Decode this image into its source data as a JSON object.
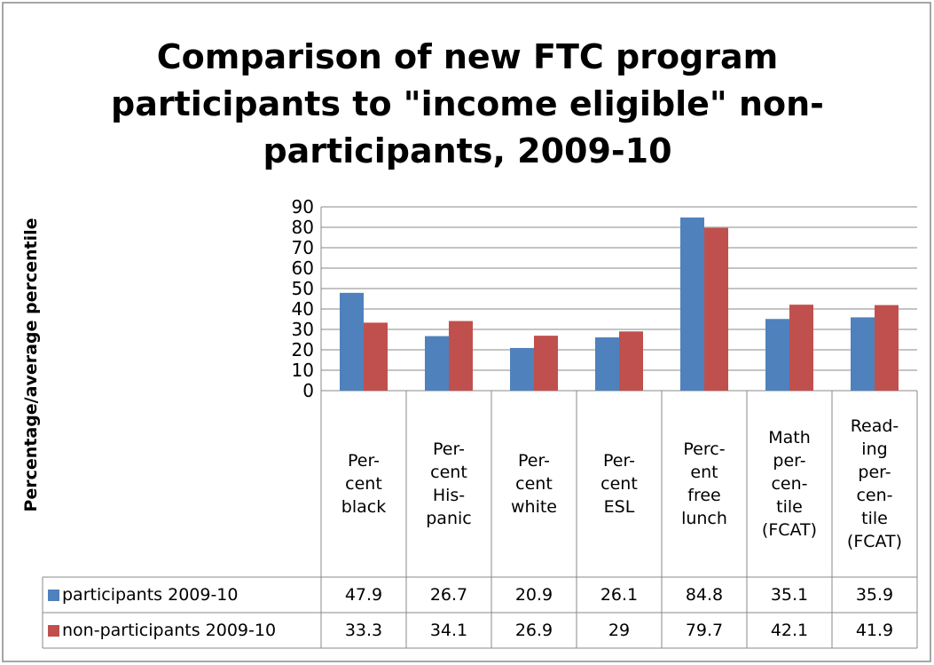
{
  "chart_data": {
    "type": "bar",
    "title": "Comparison of new FTC program participants to \"income eligible\" non-participants, 2009-10",
    "y_label": "Percentage/average percentile",
    "categories": [
      "Per-\ncent\nblack",
      "Per-\ncent\nHis-\npanic",
      "Per-\ncent\nwhite",
      "Per-\ncent\nESL",
      "Perc-\nent\nfree\nlunch",
      "Math\nper-\ncen-\ntile\n(FCAT)",
      "Read-\ning\nper-\ncen-\ntile\n(FCAT)"
    ],
    "series": [
      {
        "name": "participants 2009-10",
        "color": "#4f81bd",
        "values": [
          47.9,
          26.7,
          20.9,
          26.1,
          84.8,
          35.1,
          35.9
        ]
      },
      {
        "name": "non-participants 2009-10",
        "color": "#c0504d",
        "values": [
          33.3,
          34.1,
          26.9,
          29,
          79.7,
          42.1,
          41.9
        ]
      }
    ],
    "ylim": [
      0,
      90
    ],
    "yticks": [
      0,
      10,
      20,
      30,
      40,
      50,
      60,
      70,
      80,
      90
    ],
    "grid": true
  }
}
